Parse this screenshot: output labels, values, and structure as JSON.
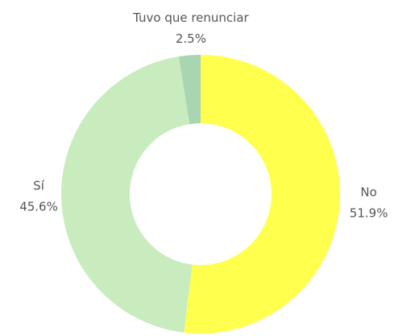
{
  "chart_data": {
    "type": "donut",
    "categories": [
      "No",
      "Sí",
      "Tuvo que renunciar"
    ],
    "values": [
      51.9,
      45.6,
      2.5
    ],
    "value_labels": [
      "51.9%",
      "45.6%",
      "2.5%"
    ],
    "colors": [
      "#ffff4d",
      "#c9ecbf",
      "#a9d5b2"
    ]
  }
}
